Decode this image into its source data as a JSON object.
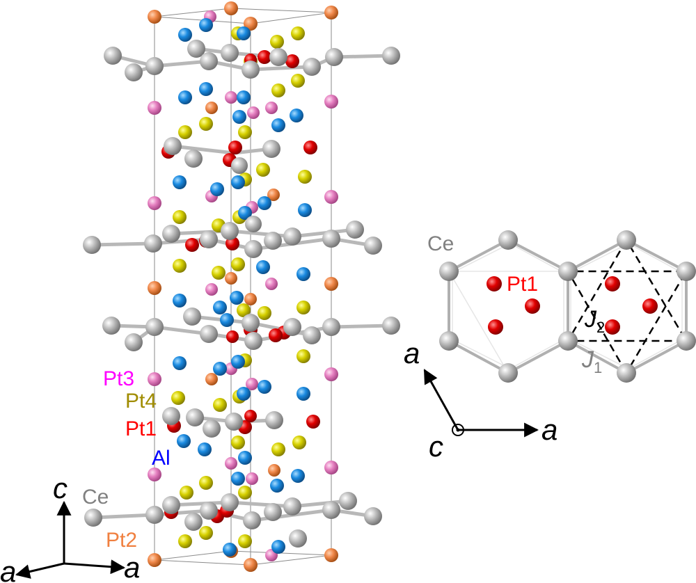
{
  "colors": {
    "Ce": "#a9a9a9",
    "Pt1": "#e00000",
    "Pt2": "#f0884a",
    "Pt3": "#e57fc0",
    "Pt4": "#d6d000",
    "Al": "#1a8ae0",
    "Ce_label": "#808080",
    "Pt1_label": "#ff0000",
    "Pt2_label": "#f08040",
    "Pt3_label": "#ff00ff",
    "Pt4_label": "#a08c00",
    "Al_label": "#0000ff"
  },
  "legend": {
    "pt3": "Pt3",
    "pt4": "Pt4",
    "pt1": "Pt1",
    "al": "Al",
    "ce": "Ce",
    "pt2": "Pt2"
  },
  "left_axes": {
    "c": "c",
    "a_left": "a",
    "a_right": "a"
  },
  "right_view": {
    "ce": "Ce",
    "pt1": "Pt1",
    "j2": "J",
    "j2_sub": "2",
    "j1": "J",
    "j1_sub": "1",
    "axis_a_up": "a",
    "axis_a_right": "a",
    "axis_c": "c"
  }
}
